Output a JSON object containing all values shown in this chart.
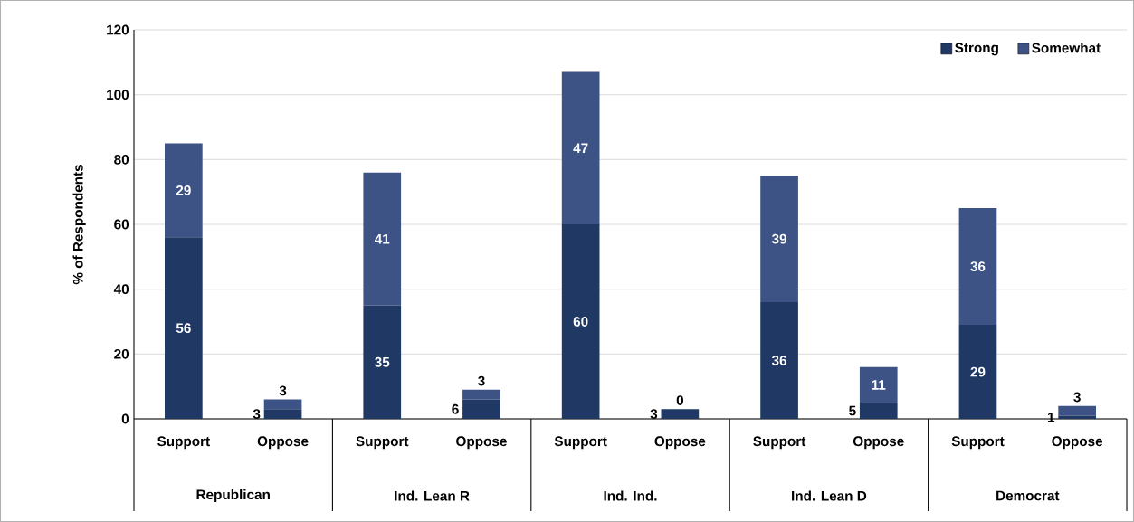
{
  "chart_data": {
    "type": "bar",
    "stacked": true,
    "ylabel": "% of Respondents",
    "categories": [
      "Support",
      "Oppose",
      "Support",
      "Oppose",
      "Support",
      "Oppose",
      "Support",
      "Oppose",
      "Support",
      "Oppose"
    ],
    "series": [
      {
        "name": "Strong",
        "color": "#203864",
        "values": [
          56,
          3,
          35,
          6,
          60,
          3,
          36,
          5,
          29,
          1
        ]
      },
      {
        "name": "Somewhat",
        "color": "#3d5285",
        "values": [
          29,
          3,
          41,
          3,
          47,
          0,
          39,
          11,
          36,
          3
        ]
      }
    ],
    "annotations": [
      "Republican",
      "Ind. Lean R",
      "Ind. Ind.",
      "Ind. Lean D",
      "Democrat"
    ],
    "ylim": [
      0,
      120
    ],
    "yticks": [
      0,
      20,
      40,
      60,
      80,
      100,
      120
    ],
    "grid": "y",
    "legend": "top right",
    "data_labels": true
  }
}
